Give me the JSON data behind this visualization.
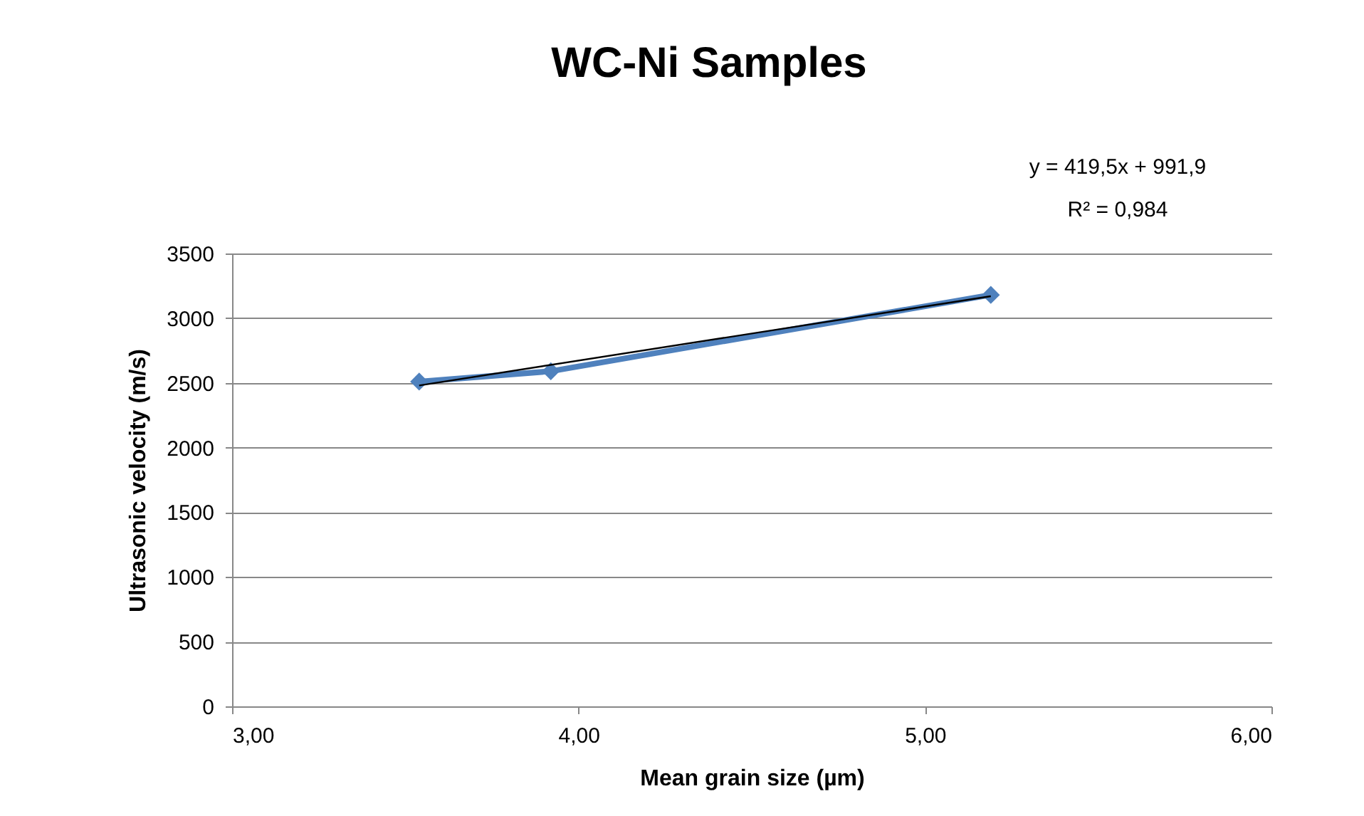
{
  "chart_data": {
    "type": "line",
    "title": "WC-Ni Samples",
    "xlabel": "Mean grain size (µm)",
    "ylabel": "Ultrasonic velocity (m/s)",
    "annotations": [
      "y = 419,5x + 991,9",
      "R² = 0,984"
    ],
    "xlim": [
      3,
      6
    ],
    "xticks": [
      {
        "value": 3,
        "label": "3,00"
      },
      {
        "value": 4,
        "label": "4,00"
      },
      {
        "value": 5,
        "label": "5,00"
      },
      {
        "value": 6,
        "label": "6,00"
      }
    ],
    "ylim": [
      0,
      3500
    ],
    "yticks": [
      0,
      500,
      1000,
      1500,
      2000,
      2500,
      3000,
      3500
    ],
    "grid": "y",
    "series": [
      {
        "color": "#4f81bd",
        "marker": "diamond",
        "x": [
          3.54,
          3.92,
          5.19
        ],
        "values": [
          2510,
          2590,
          3180
        ]
      },
      {
        "type": "line",
        "color": "#000000",
        "marker": "none",
        "x": [
          3.54,
          5.19
        ],
        "values": [
          2480,
          3170
        ]
      }
    ]
  }
}
